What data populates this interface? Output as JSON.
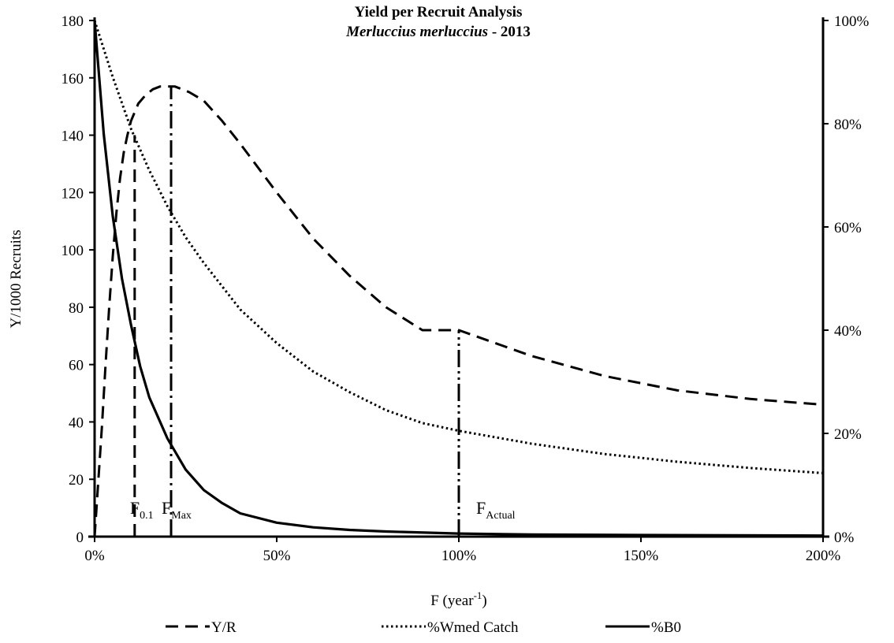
{
  "chart_data": {
    "type": "line",
    "title": "Yield per Recruit Analysis",
    "subtitle_species": "Merluccius merluccius",
    "subtitle_year": "- 2013",
    "xlabel": "F (year",
    "xlabel_sup": "-1",
    "xlabel_close": ")",
    "ylabel": "Y/1000 Recruits",
    "xlim": [
      0,
      2
    ],
    "ylim": [
      0,
      180
    ],
    "y2lim": [
      0,
      1
    ],
    "x_ticks": [
      {
        "value": 0,
        "label": "0%"
      },
      {
        "value": 0.5,
        "label": "50%"
      },
      {
        "value": 1.0,
        "label": "100%"
      },
      {
        "value": 1.5,
        "label": "150%"
      },
      {
        "value": 2.0,
        "label": "200%"
      }
    ],
    "y_ticks": [
      {
        "value": 0,
        "label": "0"
      },
      {
        "value": 20,
        "label": "20"
      },
      {
        "value": 40,
        "label": "40"
      },
      {
        "value": 60,
        "label": "60"
      },
      {
        "value": 80,
        "label": "80"
      },
      {
        "value": 100,
        "label": "100"
      },
      {
        "value": 120,
        "label": "120"
      },
      {
        "value": 140,
        "label": "140"
      },
      {
        "value": 160,
        "label": "160"
      },
      {
        "value": 180,
        "label": "180"
      }
    ],
    "y2_ticks": [
      {
        "value": 0,
        "label": "0%"
      },
      {
        "value": 0.2,
        "label": "20%"
      },
      {
        "value": 0.4,
        "label": "40%"
      },
      {
        "value": 0.6,
        "label": "60%"
      },
      {
        "value": 0.8,
        "label": "80%"
      },
      {
        "value": 1.0,
        "label": "100%"
      }
    ],
    "series": [
      {
        "name": "Y/R",
        "axis": "left",
        "dash": "dashed",
        "x": [
          0,
          0.01,
          0.02,
          0.03,
          0.04,
          0.05,
          0.06,
          0.07,
          0.08,
          0.09,
          0.1,
          0.11,
          0.12,
          0.14,
          0.16,
          0.18,
          0.2,
          0.22,
          0.24,
          0.26,
          0.3,
          0.35,
          0.4,
          0.5,
          0.6,
          0.7,
          0.8,
          0.9,
          1.0,
          1.2,
          1.4,
          1.6,
          1.8,
          2.0
        ],
        "y": [
          0,
          19,
          38,
          60,
          80,
          98,
          113,
          125,
          134,
          140,
          145,
          148,
          151,
          154,
          156,
          157,
          157,
          157,
          156,
          155,
          152,
          145,
          137,
          120,
          104,
          91,
          80,
          72,
          72,
          63,
          56,
          51,
          48,
          46
        ]
      },
      {
        "name": "%Wmed Catch",
        "axis": "right",
        "dash": "dotted",
        "x": [
          0,
          0.05,
          0.1,
          0.15,
          0.2,
          0.25,
          0.3,
          0.4,
          0.5,
          0.6,
          0.7,
          0.8,
          0.9,
          1.0,
          1.2,
          1.4,
          1.6,
          1.8,
          2.0
        ],
        "y": [
          1.0,
          0.89,
          0.79,
          0.71,
          0.64,
          0.58,
          0.53,
          0.44,
          0.375,
          0.32,
          0.28,
          0.245,
          0.22,
          0.205,
          0.18,
          0.16,
          0.145,
          0.133,
          0.123
        ]
      },
      {
        "name": "%B0",
        "axis": "right",
        "dash": "solid",
        "x": [
          0,
          0.025,
          0.05,
          0.075,
          0.1,
          0.125,
          0.15,
          0.2,
          0.25,
          0.3,
          0.35,
          0.4,
          0.5,
          0.6,
          0.7,
          0.8,
          1.0,
          1.2,
          1.5,
          2.0
        ],
        "y": [
          1.0,
          0.78,
          0.62,
          0.5,
          0.41,
          0.33,
          0.27,
          0.19,
          0.13,
          0.09,
          0.065,
          0.045,
          0.027,
          0.018,
          0.013,
          0.01,
          0.006,
          0.004,
          0.003,
          0.002
        ]
      }
    ],
    "reference_lines": [
      {
        "name": "F0.1",
        "x": 0.11,
        "y_top": 140,
        "dash": "dashed",
        "label_main": "F",
        "label_sub": "0.1"
      },
      {
        "name": "FMax",
        "x": 0.21,
        "y_top": 157,
        "dash": "dashdot",
        "label_main": "F",
        "label_sub": "Max"
      },
      {
        "name": "FActual",
        "x": 1.0,
        "y_top": 72,
        "dash": "dashdotdot",
        "label_main": "F",
        "label_sub": "Actual"
      }
    ],
    "legend": {
      "position": "bottom",
      "entries": [
        {
          "label": "Y/R",
          "dash": "dashed"
        },
        {
          "label": "%Wmed Catch",
          "dash": "dotted"
        },
        {
          "label": "%B0",
          "dash": "solid"
        }
      ]
    },
    "grid": false
  }
}
